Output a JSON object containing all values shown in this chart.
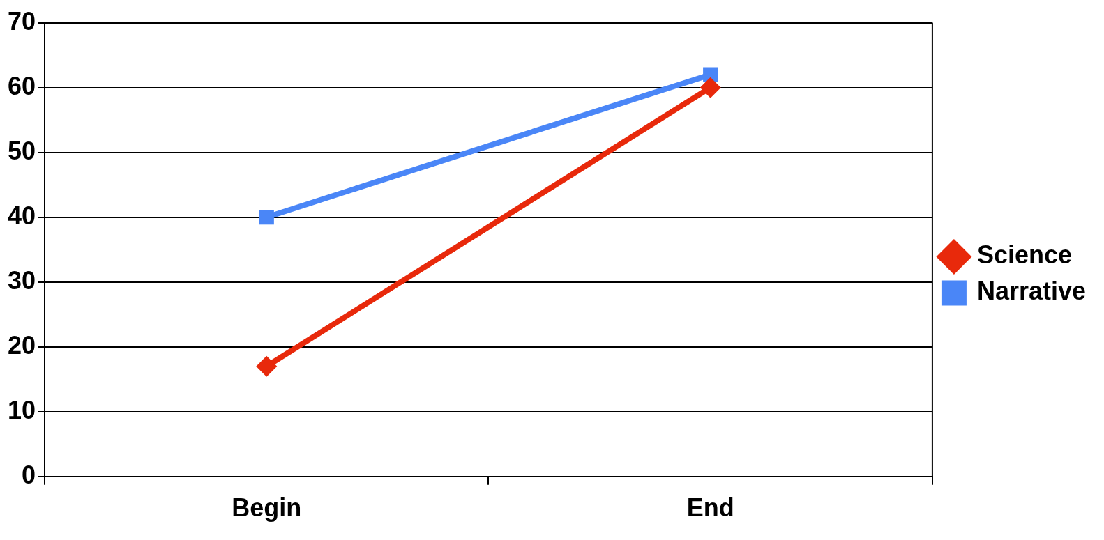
{
  "chart_data": {
    "type": "line",
    "categories": [
      "Begin",
      "End"
    ],
    "series": [
      {
        "name": "Science",
        "color": "#e8290b",
        "values": [
          17,
          60
        ],
        "marker": "diamond"
      },
      {
        "name": "Narrative",
        "color": "#4a86f7",
        "values": [
          40,
          62
        ],
        "marker": "square"
      }
    ],
    "ylim": [
      0,
      70
    ],
    "yticks": [
      0,
      10,
      20,
      30,
      40,
      50,
      60,
      70
    ],
    "grid": "y",
    "legend": "right",
    "line_style": "solid"
  }
}
